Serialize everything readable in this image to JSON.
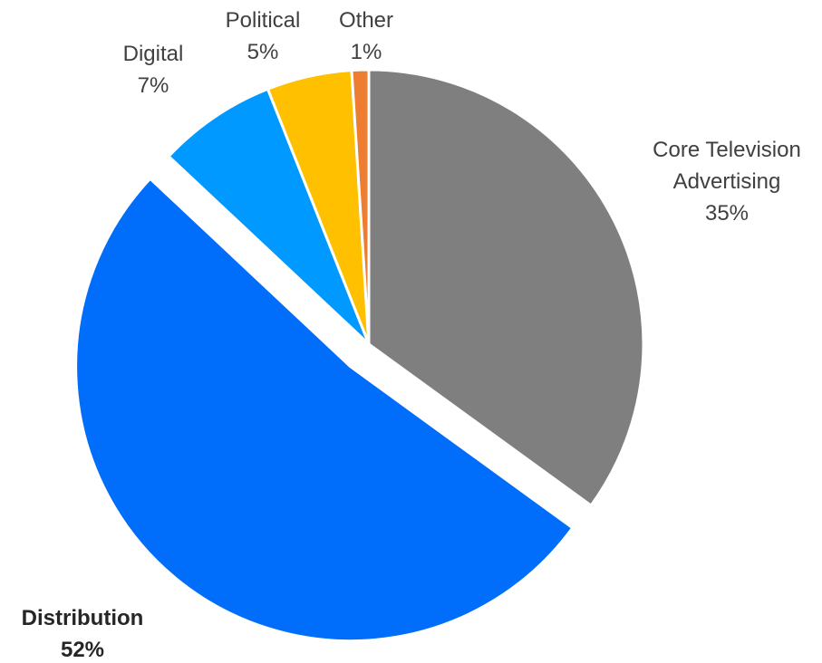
{
  "chart_data": {
    "type": "pie",
    "title": "",
    "slices": [
      {
        "label_lines": [
          "Core Television",
          "Advertising"
        ],
        "percent_label": "35%",
        "value": 35,
        "color": "#7f7f7f",
        "exploded": false,
        "bold": false
      },
      {
        "label_lines": [
          "Distribution"
        ],
        "percent_label": "52%",
        "value": 52,
        "color": "#006efa",
        "exploded": true,
        "bold": true
      },
      {
        "label_lines": [
          "Digital"
        ],
        "percent_label": "7%",
        "value": 7,
        "color": "#0099ff",
        "exploded": false,
        "bold": false
      },
      {
        "label_lines": [
          "Political"
        ],
        "percent_label": "5%",
        "value": 5,
        "color": "#ffc000",
        "exploded": false,
        "bold": false
      },
      {
        "label_lines": [
          "Other"
        ],
        "percent_label": "1%",
        "value": 1,
        "color": "#ed7d31",
        "exploded": false,
        "bold": false
      }
    ],
    "start_angle": "12 o'clock",
    "direction": "clockwise",
    "legend": "none"
  }
}
